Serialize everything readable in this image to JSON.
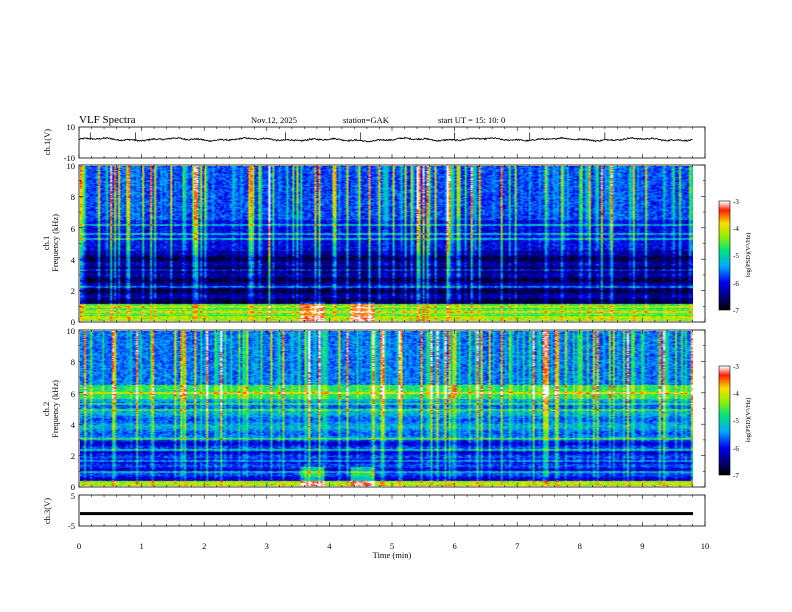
{
  "header": {
    "title": "VLF  Spectra",
    "date": "Nov.12, 2025",
    "station": "station=GAK",
    "start_ut": "start  UT  =   15: 10: 0"
  },
  "chart_data": [
    {
      "type": "line",
      "panel": "ch1-waveform",
      "ylabel": "ch.1(V)",
      "ylim": [
        -10,
        10
      ],
      "yticks": [
        "10",
        "-10"
      ],
      "baseline": 2,
      "xlim": [
        0,
        10
      ]
    },
    {
      "type": "heatmap",
      "panel": "ch1-spectrogram",
      "ylabel_line1": "ch.1",
      "ylabel_line2": "Frequency  (kHz)",
      "ylim": [
        0,
        10
      ],
      "yticks": [
        "0",
        "2",
        "4",
        "6",
        "8",
        "10"
      ],
      "xlim": [
        0,
        9.8
      ],
      "colorbar": {
        "label": "log(PSD)(V²/Hz)",
        "range": [
          -7,
          -3
        ],
        "ticks": [
          "-3",
          "-4",
          "-5",
          "-6",
          "-7"
        ]
      }
    },
    {
      "type": "heatmap",
      "panel": "ch2-spectrogram",
      "ylabel_line1": "ch.2",
      "ylabel_line2": "Frequency  (kHz)",
      "ylim": [
        0,
        10
      ],
      "yticks": [
        "0",
        "2",
        "4",
        "6",
        "8",
        "10"
      ],
      "xlim": [
        0,
        9.8
      ],
      "colorbar": {
        "label": "log(PSD)(V²/Hz)",
        "range": [
          -7,
          -3
        ],
        "ticks": [
          "-3",
          "-4",
          "-5",
          "-6",
          "-7"
        ]
      }
    },
    {
      "type": "line",
      "panel": "ch3-waveform",
      "ylabel": "ch.3(V)",
      "ylim": [
        -5,
        5
      ],
      "yticks": [
        "5",
        "-5"
      ],
      "baseline": -1,
      "xlim": [
        0,
        10
      ],
      "xlabel": "Time  (min)",
      "xticks": [
        "0",
        "1",
        "2",
        "3",
        "4",
        "5",
        "6",
        "7",
        "8",
        "9",
        "10"
      ]
    }
  ],
  "colors": {
    "axis": "#000000",
    "waveform": "#000000"
  }
}
